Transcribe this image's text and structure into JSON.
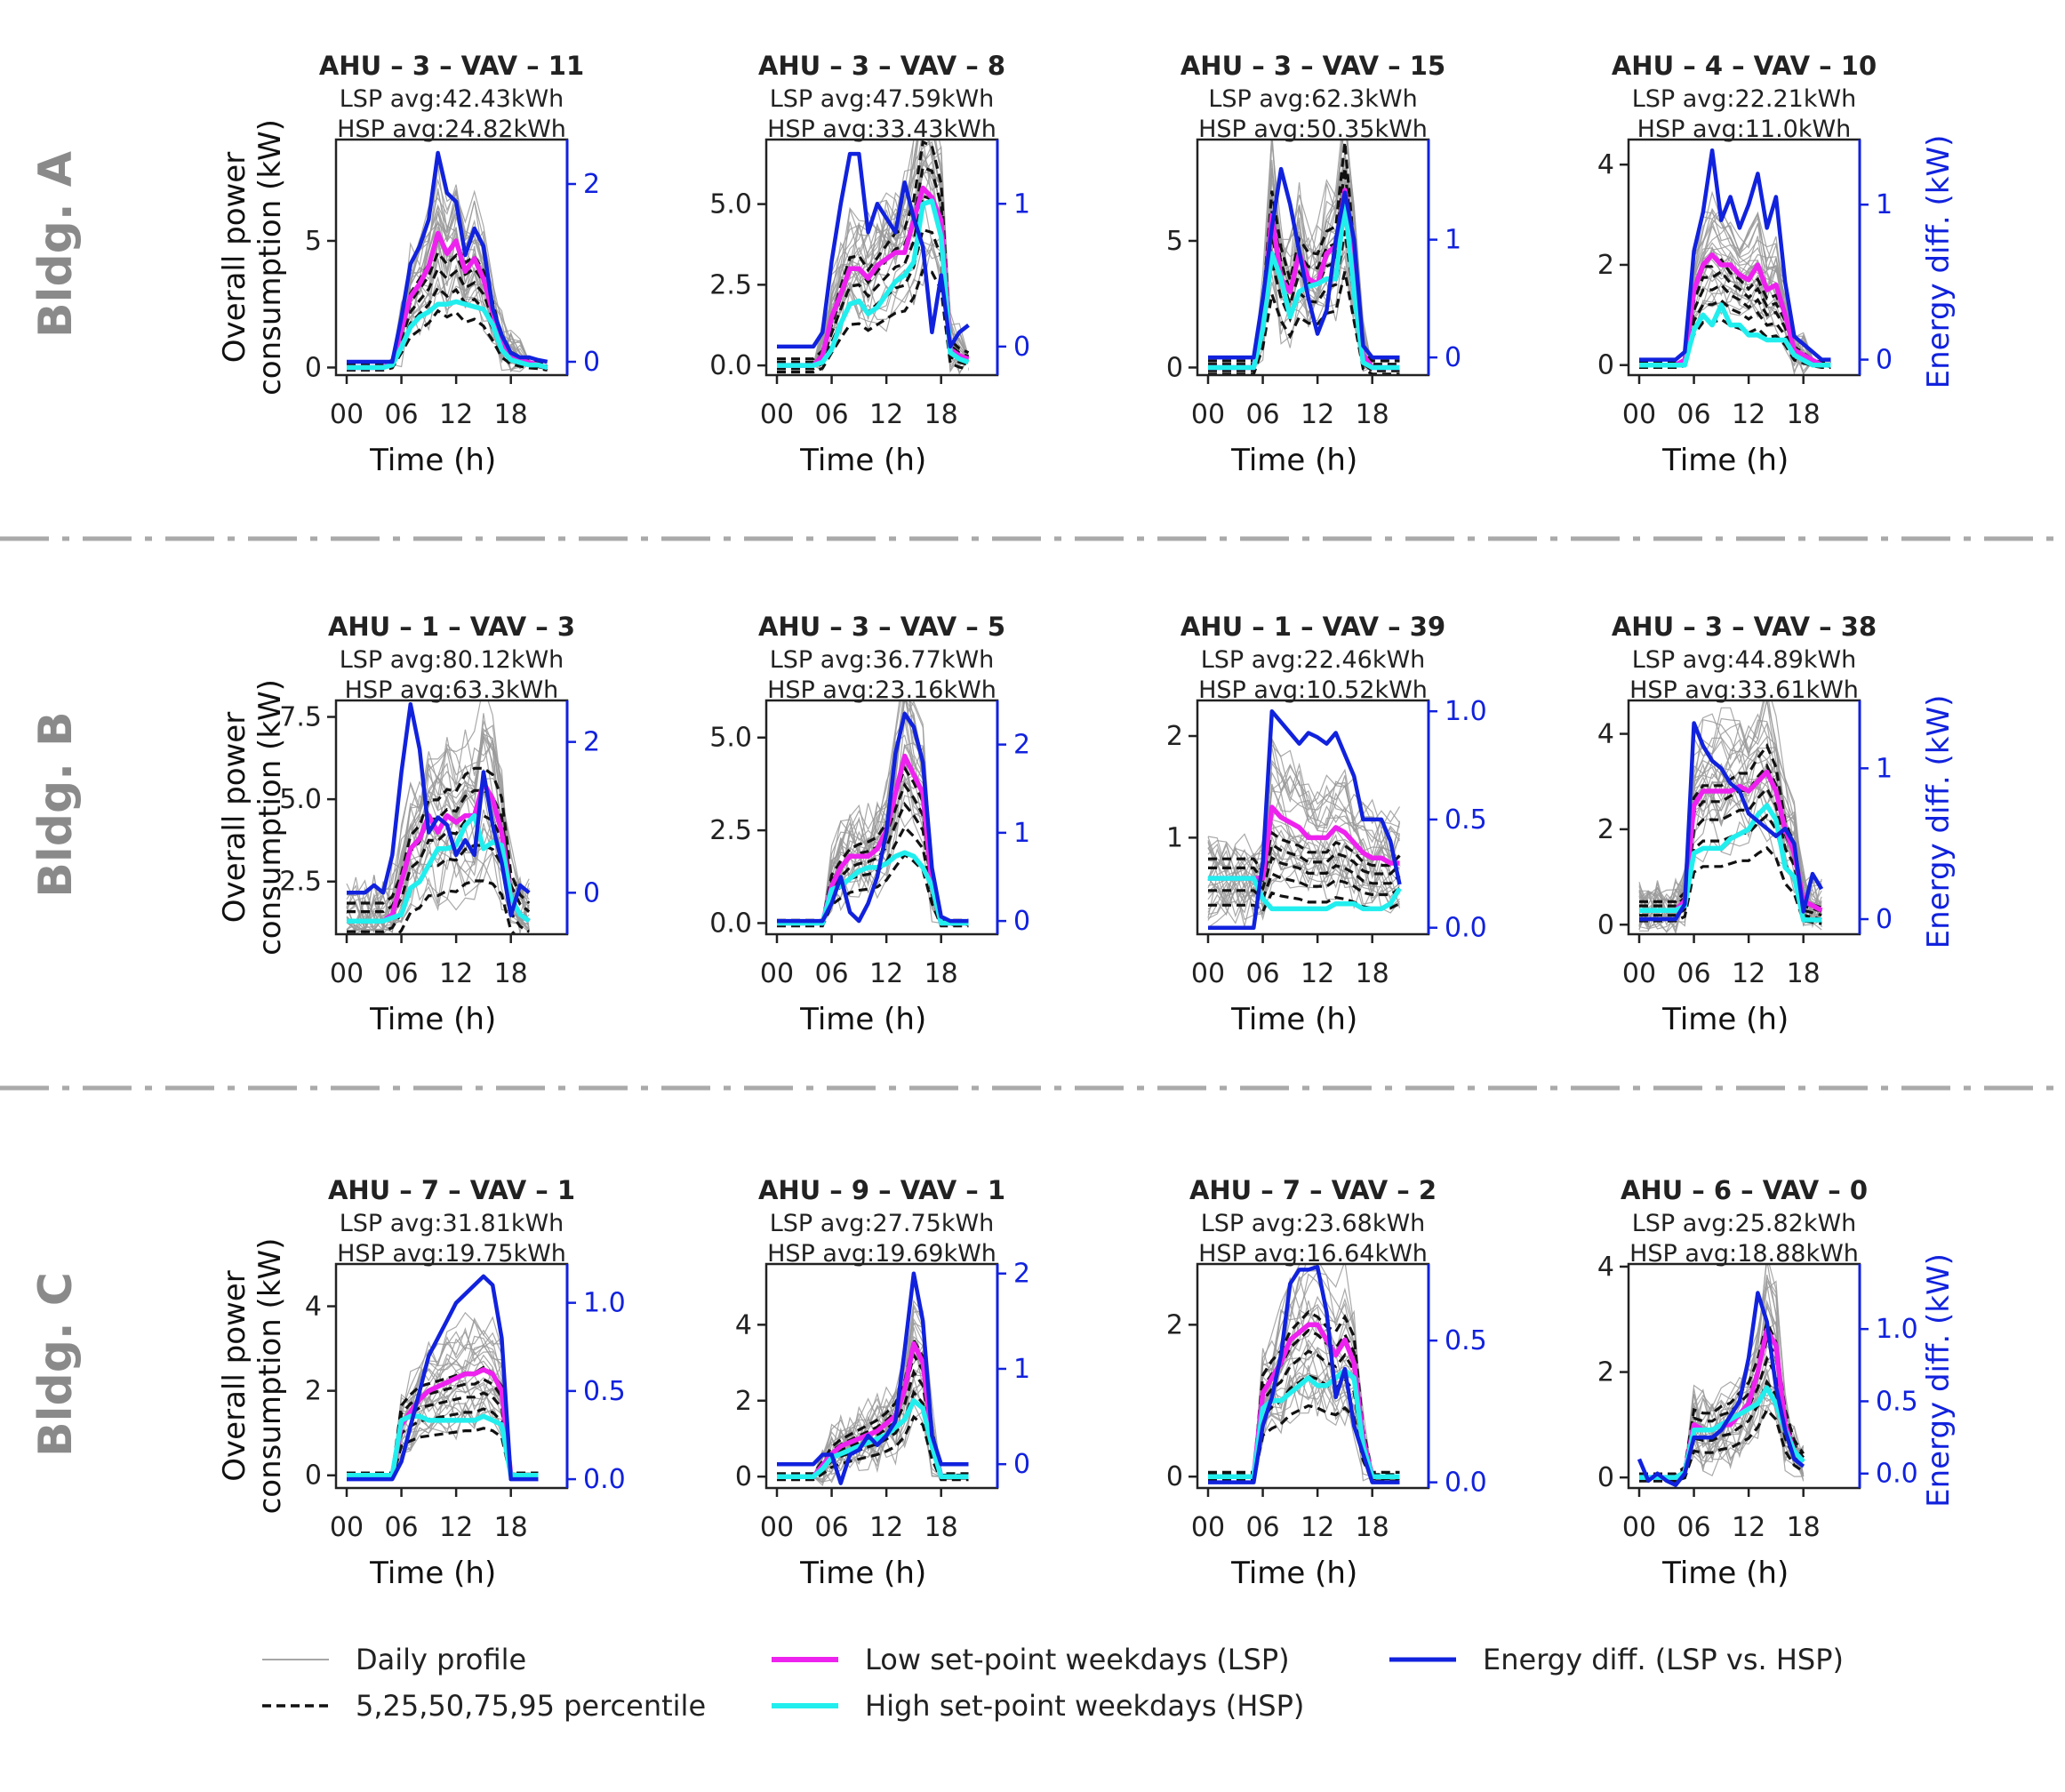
{
  "colors": {
    "daily": "#9a9a9a",
    "percentile": "#111111",
    "lsp": "#ee22ee",
    "hsp": "#22eeee",
    "energy_diff": "#1122dd",
    "row_label": "#8a8a8a",
    "separator": "#aaaaaa"
  },
  "legend": {
    "daily": "Daily profile",
    "percentile": "5,25,50,75,95 percentile",
    "lsp": "Low set-point weekdays (LSP)",
    "hsp": "High set-point weekdays (HSP)",
    "energy_diff": "Energy diff. (LSP vs. HSP)"
  },
  "axis_labels": {
    "left": [
      "Overall power",
      "consumption (kW)"
    ],
    "right": "Energy diff. (kW)",
    "x": "Time (h)"
  },
  "rows": [
    {
      "label": "Bldg. A"
    },
    {
      "label": "Bldg. B"
    },
    {
      "label": "Bldg. C"
    }
  ],
  "chart_data": [
    {
      "type": "line",
      "building": "Bldg. A",
      "title": "AHU – 3 – VAV – 11",
      "lsp_text": "LSP avg:42.43kWh",
      "hsp_text": "HSP avg:24.82kWh",
      "x": [
        0,
        6,
        12,
        18
      ],
      "xticks": [
        "00",
        "06",
        "12",
        "18"
      ],
      "ylim": [
        -0.3,
        9
      ],
      "yticks": [
        0,
        5
      ],
      "y2lim": [
        -0.15,
        2.5
      ],
      "y2ticks": [
        0,
        2
      ],
      "lsp": [
        0,
        0,
        0,
        0,
        0,
        0.2,
        1.5,
        2.8,
        3.3,
        4,
        5.3,
        4.5,
        5,
        3.8,
        4.3,
        3.5,
        2.2,
        1,
        0.5,
        0.3,
        0.2,
        0.1,
        0
      ],
      "hsp": [
        0,
        0,
        0,
        0,
        0,
        0.1,
        0.8,
        1.6,
        2,
        2.2,
        2.5,
        2.5,
        2.6,
        2.5,
        2.4,
        2.3,
        1.7,
        0.7,
        0.3,
        0.2,
        0.1,
        0.1,
        0
      ],
      "diff": [
        0,
        0,
        0,
        0,
        0,
        0,
        0.5,
        1.1,
        1.3,
        1.6,
        2.35,
        1.9,
        1.8,
        1.2,
        1.5,
        1.3,
        0.6,
        0.3,
        0.1,
        0.05,
        0.05,
        0.02,
        0
      ]
    },
    {
      "type": "line",
      "building": "Bldg. A",
      "title": "AHU – 3 – VAV – 8",
      "lsp_text": "LSP avg:47.59kWh",
      "hsp_text": "HSP avg:33.43kWh",
      "x": [
        0,
        6,
        12,
        18
      ],
      "xticks": [
        "00",
        "06",
        "12",
        "18"
      ],
      "ylim": [
        -0.3,
        7
      ],
      "yticks": [
        0,
        2.5,
        5.0
      ],
      "y2lim": [
        -0.2,
        1.45
      ],
      "y2ticks": [
        0,
        1
      ],
      "lsp": [
        0,
        0,
        0,
        0,
        0,
        0.3,
        1.5,
        2.2,
        3,
        3,
        2.7,
        3.1,
        3.3,
        3.5,
        3.5,
        4.5,
        5.5,
        5.2,
        4.5,
        0.5,
        0.3,
        0.2
      ],
      "hsp": [
        0,
        0,
        0,
        0,
        0,
        0.1,
        0.5,
        1.3,
        1.9,
        2,
        1.6,
        1.8,
        2.2,
        2.6,
        2.8,
        3.2,
        5,
        5.1,
        4,
        0.4,
        0.2,
        0.1
      ],
      "diff": [
        0,
        0,
        0,
        0,
        0,
        0.1,
        0.6,
        1.0,
        1.35,
        1.35,
        0.8,
        1.0,
        0.9,
        0.8,
        1.15,
        0.9,
        0.7,
        0.1,
        0.5,
        0.0,
        0.1,
        0.15
      ]
    },
    {
      "type": "line",
      "building": "Bldg. A",
      "title": "AHU – 3 – VAV – 15",
      "lsp_text": "LSP avg:62.3kWh",
      "hsp_text": "HSP avg:50.35kWh",
      "x": [
        0,
        6,
        12,
        18
      ],
      "xticks": [
        "00",
        "06",
        "12",
        "18"
      ],
      "ylim": [
        -0.3,
        9
      ],
      "yticks": [
        0,
        5
      ],
      "y2lim": [
        -0.15,
        1.85
      ],
      "y2ticks": [
        0,
        1
      ],
      "lsp": [
        0,
        0,
        0,
        0,
        0,
        0,
        2,
        6,
        3.5,
        3,
        4.5,
        3.5,
        3.3,
        4.5,
        4.8,
        7,
        4,
        0.5,
        0,
        0,
        0,
        0
      ],
      "hsp": [
        0,
        0,
        0,
        0,
        0,
        0,
        1.5,
        4.5,
        3.5,
        2,
        3,
        3.2,
        3.3,
        3.5,
        3.5,
        6.5,
        3,
        0.2,
        0,
        0,
        0,
        0
      ],
      "diff": [
        0,
        0,
        0,
        0,
        0,
        0,
        0.5,
        1.1,
        1.6,
        1.3,
        0.9,
        0.5,
        0.2,
        0.4,
        1.0,
        1.4,
        1.0,
        0.1,
        0,
        0,
        0,
        0
      ]
    },
    {
      "type": "line",
      "building": "Bldg. A",
      "title": "AHU – 4 – VAV – 10",
      "lsp_text": "LSP avg:22.21kWh",
      "hsp_text": "HSP avg:11.0kWh",
      "x": [
        0,
        6,
        12,
        18
      ],
      "xticks": [
        "00",
        "06",
        "12",
        "18"
      ],
      "ylim": [
        -0.2,
        4.5
      ],
      "yticks": [
        0,
        2,
        4
      ],
      "y2lim": [
        -0.1,
        1.42
      ],
      "y2ticks": [
        0,
        1
      ],
      "lsp": [
        0,
        0,
        0,
        0,
        0,
        0.1,
        1.5,
        2,
        2.2,
        2,
        2,
        1.8,
        1.7,
        2,
        1.5,
        1.6,
        1.0,
        0.3,
        0.2,
        0.1,
        0,
        0
      ],
      "hsp": [
        0,
        0,
        0,
        0,
        0,
        0,
        0.7,
        1,
        0.8,
        1.2,
        0.8,
        0.8,
        0.6,
        0.6,
        0.5,
        0.5,
        0.5,
        0.2,
        0.1,
        0,
        0,
        0
      ],
      "diff": [
        0,
        0,
        0,
        0,
        0,
        0.05,
        0.7,
        0.95,
        1.35,
        0.9,
        1.05,
        0.85,
        1.0,
        1.2,
        0.85,
        1.05,
        0.5,
        0.15,
        0.1,
        0.05,
        0,
        0
      ]
    },
    {
      "type": "line",
      "building": "Bldg. B",
      "title": "AHU – 1 – VAV – 3",
      "lsp_text": "LSP avg:80.12kWh",
      "hsp_text": "HSP avg:63.3kWh",
      "x": [
        0,
        6,
        12,
        18
      ],
      "xticks": [
        "00",
        "06",
        "12",
        "18"
      ],
      "ylim": [
        0.9,
        8
      ],
      "yticks": [
        2.5,
        5.0,
        7.5
      ],
      "y2lim": [
        -0.55,
        2.55
      ],
      "y2ticks": [
        0,
        2
      ],
      "lsp": [
        1.3,
        1.3,
        1.3,
        1.3,
        1.3,
        1.5,
        2.5,
        3.5,
        3.8,
        4.5,
        4,
        4.5,
        4.3,
        4.5,
        4.5,
        5.5,
        5,
        4,
        2,
        1.5,
        1.3
      ],
      "hsp": [
        1.3,
        1.3,
        1.3,
        1.3,
        1.3,
        1.4,
        1.5,
        2.3,
        2.5,
        3,
        3.5,
        3.5,
        3.6,
        4.2,
        4.5,
        3.5,
        3.7,
        3.6,
        2,
        1.5,
        1.3
      ],
      "diff": [
        0,
        0,
        0,
        0.1,
        0,
        0.5,
        1.6,
        2.5,
        1.9,
        0.8,
        1.0,
        0.9,
        0.5,
        0.7,
        0.5,
        1.6,
        0.9,
        0.4,
        -0.3,
        0.1,
        0
      ]
    },
    {
      "type": "line",
      "building": "Bldg. B",
      "title": "AHU – 3 – VAV – 5",
      "lsp_text": "LSP avg:36.77kWh",
      "hsp_text": "HSP avg:23.16kWh",
      "x": [
        0,
        6,
        12,
        18
      ],
      "xticks": [
        "00",
        "06",
        "12",
        "18"
      ],
      "ylim": [
        -0.3,
        6
      ],
      "yticks": [
        0,
        2.5,
        5.0
      ],
      "y2lim": [
        -0.15,
        2.5
      ],
      "y2ticks": [
        0,
        1,
        2
      ],
      "lsp": [
        0,
        0,
        0,
        0,
        0,
        0,
        1,
        1.5,
        1.8,
        1.8,
        1.8,
        2,
        2.5,
        3.5,
        4.5,
        4,
        3.5,
        1,
        0,
        0,
        0,
        0
      ],
      "hsp": [
        0,
        0,
        0,
        0,
        0,
        0,
        0.9,
        1,
        1.2,
        1.4,
        1.5,
        1.5,
        1.6,
        1.8,
        1.9,
        1.8,
        1.5,
        1,
        0,
        0,
        0,
        0
      ],
      "diff": [
        0,
        0,
        0,
        0,
        0,
        0,
        0.2,
        0.5,
        0.1,
        0.0,
        0.2,
        0.5,
        1.0,
        1.9,
        2.35,
        2.2,
        1.8,
        0.6,
        0.05,
        0,
        0,
        0
      ]
    },
    {
      "type": "line",
      "building": "Bldg. B",
      "title": "AHU – 1 – VAV – 39",
      "lsp_text": "LSP avg:22.46kWh",
      "hsp_text": "HSP avg:10.52kWh",
      "x": [
        0,
        6,
        12,
        18
      ],
      "xticks": [
        "00",
        "06",
        "12",
        "18"
      ],
      "ylim": [
        0.05,
        2.35
      ],
      "yticks": [
        1,
        2
      ],
      "y2lim": [
        -0.03,
        1.05
      ],
      "y2ticks": [
        0.0,
        0.5,
        1.0
      ],
      "lsp": [
        0.6,
        0.6,
        0.6,
        0.6,
        0.6,
        0.6,
        0.6,
        1.3,
        1.2,
        1.15,
        1.1,
        1,
        1,
        1,
        1.1,
        1.05,
        0.95,
        0.85,
        0.8,
        0.8,
        0.75,
        0.75
      ],
      "hsp": [
        0.6,
        0.6,
        0.6,
        0.6,
        0.6,
        0.6,
        0.4,
        0.3,
        0.3,
        0.3,
        0.3,
        0.3,
        0.3,
        0.3,
        0.35,
        0.35,
        0.35,
        0.3,
        0.3,
        0.3,
        0.35,
        0.5
      ],
      "diff": [
        0.0,
        0.0,
        0.0,
        0.0,
        0.0,
        0.0,
        0.3,
        1.0,
        0.95,
        0.9,
        0.85,
        0.9,
        0.88,
        0.85,
        0.9,
        0.8,
        0.7,
        0.5,
        0.5,
        0.5,
        0.4,
        0.2
      ]
    },
    {
      "type": "line",
      "building": "Bldg. B",
      "title": "AHU – 3 – VAV – 38",
      "lsp_text": "LSP avg:44.89kWh",
      "hsp_text": "HSP avg:33.61kWh",
      "x": [
        0,
        6,
        12,
        18
      ],
      "xticks": [
        "00",
        "06",
        "12",
        "18"
      ],
      "ylim": [
        -0.2,
        4.7
      ],
      "yticks": [
        0,
        2,
        4
      ],
      "y2lim": [
        -0.1,
        1.45
      ],
      "y2ticks": [
        0,
        1
      ],
      "lsp": [
        0.3,
        0.3,
        0.3,
        0.3,
        0.3,
        0.5,
        2.5,
        2.8,
        2.8,
        2.8,
        2.8,
        2.9,
        2.8,
        3,
        3.2,
        2.8,
        2,
        1.5,
        0.5,
        0.4,
        0.3
      ],
      "hsp": [
        0.3,
        0.3,
        0.3,
        0.3,
        0.3,
        0.4,
        1.5,
        1.6,
        1.6,
        1.6,
        1.8,
        1.9,
        2,
        2.3,
        2.5,
        2.2,
        1.2,
        1,
        0.1,
        0.1,
        0.1
      ],
      "diff": [
        0,
        0,
        0,
        0,
        0,
        0.1,
        1.3,
        1.15,
        1.05,
        1.0,
        0.9,
        0.85,
        0.7,
        0.65,
        0.6,
        0.55,
        0.6,
        0.5,
        0.05,
        0.3,
        0.2
      ]
    },
    {
      "type": "line",
      "building": "Bldg. C",
      "title": "AHU – 7 – VAV – 1",
      "lsp_text": "LSP avg:31.81kWh",
      "hsp_text": "HSP avg:19.75kWh",
      "x": [
        0,
        6,
        12,
        18
      ],
      "xticks": [
        "00",
        "06",
        "12",
        "18"
      ],
      "ylim": [
        -0.3,
        5
      ],
      "yticks": [
        0,
        2,
        4
      ],
      "y2lim": [
        -0.05,
        1.22
      ],
      "y2ticks": [
        0.0,
        0.5,
        1.0
      ],
      "lsp": [
        0,
        0,
        0,
        0,
        0,
        0,
        1.2,
        1.5,
        1.8,
        2,
        2.1,
        2.2,
        2.3,
        2.4,
        2.4,
        2.5,
        2.4,
        2,
        0,
        0,
        0,
        0
      ],
      "hsp": [
        0,
        0,
        0,
        0,
        0,
        0,
        1.3,
        1.4,
        1.4,
        1.3,
        1.3,
        1.3,
        1.3,
        1.3,
        1.3,
        1.4,
        1.3,
        1.2,
        0,
        0,
        0,
        0
      ],
      "diff": [
        0,
        0,
        0,
        0,
        0,
        0,
        0.1,
        0.3,
        0.5,
        0.7,
        0.8,
        0.9,
        1.0,
        1.05,
        1.1,
        1.15,
        1.1,
        0.8,
        0,
        0,
        0,
        0
      ]
    },
    {
      "type": "line",
      "building": "Bldg. C",
      "title": "AHU – 9 – VAV – 1",
      "lsp_text": "LSP avg:27.75kWh",
      "hsp_text": "HSP avg:19.69kWh",
      "x": [
        0,
        6,
        12,
        18
      ],
      "xticks": [
        "00",
        "06",
        "12",
        "18"
      ],
      "ylim": [
        -0.3,
        5.6
      ],
      "yticks": [
        0,
        2,
        4
      ],
      "y2lim": [
        -0.25,
        2.1
      ],
      "y2ticks": [
        0,
        1,
        2
      ],
      "lsp": [
        0,
        0,
        0,
        0,
        0,
        0.3,
        0.6,
        0.8,
        0.9,
        1,
        1.1,
        1.2,
        1.4,
        1.6,
        2.3,
        3.5,
        3,
        1,
        0,
        0,
        0,
        0
      ],
      "hsp": [
        0,
        0,
        0,
        0,
        0,
        0.2,
        0.5,
        0.6,
        0.7,
        0.8,
        0.9,
        1,
        1.1,
        1.3,
        1.5,
        2,
        1.8,
        0.8,
        0,
        0,
        0,
        0
      ],
      "diff": [
        0,
        0,
        0,
        0,
        0,
        0.1,
        0.1,
        -0.2,
        0.1,
        0.15,
        0.3,
        0.2,
        0.3,
        0.45,
        1.2,
        2.0,
        1.5,
        0.3,
        0,
        0,
        0,
        0
      ]
    },
    {
      "type": "line",
      "building": "Bldg. C",
      "title": "AHU – 7 – VAV – 2",
      "lsp_text": "LSP avg:23.68kWh",
      "hsp_text": "HSP avg:16.64kWh",
      "x": [
        0,
        6,
        12,
        18
      ],
      "xticks": [
        "00",
        "06",
        "12",
        "18"
      ],
      "ylim": [
        -0.15,
        2.8
      ],
      "yticks": [
        0,
        2
      ],
      "y2lim": [
        -0.02,
        0.77
      ],
      "y2ticks": [
        0.0,
        0.5
      ],
      "lsp": [
        0,
        0,
        0,
        0,
        0,
        0,
        1.1,
        1.3,
        1.5,
        1.8,
        1.9,
        2,
        2,
        1.8,
        1.6,
        1.8,
        1.5,
        0.5,
        0,
        0,
        0,
        0
      ],
      "hsp": [
        0,
        0,
        0,
        0,
        0,
        0,
        0.9,
        1,
        1,
        1.1,
        1.2,
        1.3,
        1.2,
        1.2,
        1.3,
        1.4,
        1.3,
        0.4,
        0,
        0,
        0,
        0
      ],
      "diff": [
        0,
        0,
        0,
        0,
        0,
        0,
        0.2,
        0.3,
        0.45,
        0.7,
        0.75,
        0.75,
        0.76,
        0.6,
        0.3,
        0.4,
        0.2,
        0.1,
        0,
        0,
        0,
        0
      ]
    },
    {
      "type": "line",
      "building": "Bldg. C",
      "title": "AHU – 6 – VAV – 0",
      "lsp_text": "LSP avg:25.82kWh",
      "hsp_text": "HSP avg:18.88kWh",
      "x": [
        0,
        6,
        12,
        18
      ],
      "xticks": [
        "00",
        "06",
        "12",
        "18"
      ],
      "ylim": [
        -0.2,
        4.05
      ],
      "yticks": [
        0,
        2,
        4
      ],
      "y2lim": [
        -0.1,
        1.45
      ],
      "y2ticks": [
        0.0,
        0.5,
        1.0
      ],
      "lsp": [
        0,
        0,
        0,
        0,
        0,
        0.1,
        1,
        0.9,
        0.9,
        1,
        1,
        1.2,
        1.4,
        2,
        2.8,
        2.5,
        1,
        0.5,
        0.3
      ],
      "hsp": [
        0,
        0,
        0,
        0,
        0,
        0.1,
        0.9,
        0.9,
        0.9,
        1,
        1.1,
        1.2,
        1.3,
        1.4,
        1.7,
        1.4,
        0.9,
        0.5,
        0.3
      ],
      "diff": [
        0.1,
        -0.05,
        0.0,
        -0.05,
        -0.08,
        0.0,
        0.25,
        0.25,
        0.25,
        0.3,
        0.4,
        0.5,
        0.8,
        1.25,
        1.05,
        0.6,
        0.3,
        0.1,
        0.05
      ]
    }
  ]
}
